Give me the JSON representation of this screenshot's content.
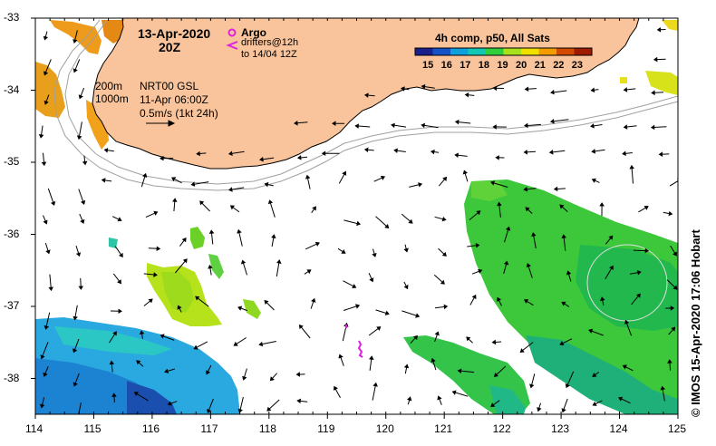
{
  "header": {
    "date": "13-Apr-2020",
    "time": "20Z",
    "argo_label": "Argo",
    "drifters_label": "drifters@12h",
    "drifters_to": "to 14/04 12Z",
    "isobath_200": "200m",
    "isobath_1000": "1000m",
    "altimetry_product": "NRT00 GSL",
    "altimetry_time": "11-Apr 06:00Z",
    "scale_text": "0.5m/s (1kt 24h)",
    "composite_title": "4h comp, p50, All Sats"
  },
  "colorbar": {
    "ticks": [
      "15",
      "16",
      "17",
      "18",
      "19",
      "20",
      "21",
      "22",
      "23"
    ],
    "colors": [
      "#1a1f8c",
      "#1452c8",
      "#0ea0dc",
      "#12c8b4",
      "#2fcf3c",
      "#a9e21c",
      "#f0e000",
      "#f29c00",
      "#d24a00",
      "#a01a00"
    ]
  },
  "axes": {
    "x_ticks": [
      "114",
      "115",
      "116",
      "117",
      "118",
      "119",
      "120",
      "121",
      "122",
      "123",
      "124",
      "125"
    ],
    "y_ticks": [
      "-33",
      "-34",
      "-35",
      "-36",
      "-37",
      "-38"
    ]
  },
  "credit": "© IMOS 15-Apr-2020 17:06 Hobart",
  "colors": {
    "land": "#f9c49b",
    "coast": "#000000",
    "isobath": "#a0a0a0",
    "argo": "#e020e0"
  }
}
